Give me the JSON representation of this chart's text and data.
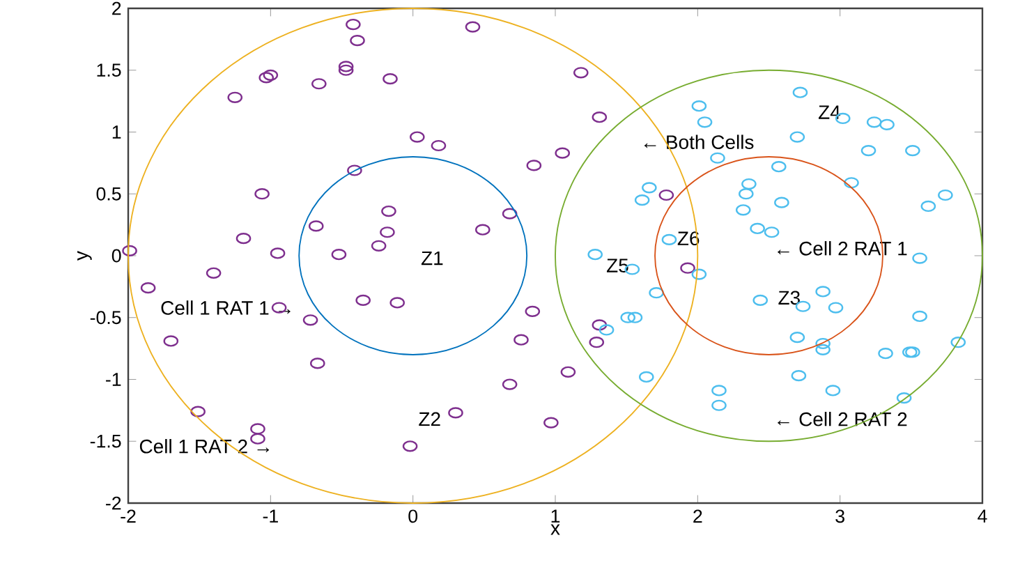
{
  "chart_data": {
    "type": "scatter",
    "xlabel": "x",
    "ylabel": "y",
    "xlim": [
      -2,
      4
    ],
    "ylim": [
      -2,
      2
    ],
    "xticks": [
      -2,
      -1,
      0,
      1,
      2,
      3,
      4
    ],
    "yticks": [
      -2,
      -1.5,
      -1,
      -0.5,
      0,
      0.5,
      1,
      1.5,
      2
    ],
    "marker": "circle",
    "series": [
      {
        "color": "#7e2f8e",
        "x": [
          -0.42,
          0.42,
          -0.39,
          -1.0,
          -1.03,
          -0.47,
          -0.47,
          -0.66,
          -0.16,
          -1.25,
          0.03,
          0.18,
          0.85,
          1.05,
          -0.41,
          -1.06,
          -0.17,
          -0.68,
          0.68,
          -1.19,
          -0.18,
          0.49,
          -0.24,
          -1.99,
          -0.95,
          -0.52,
          1.18,
          1.31,
          1.78,
          -1.4,
          -1.86,
          -0.35,
          -0.11,
          -0.94,
          -0.72,
          -1.7,
          -0.67,
          0.84,
          0.76,
          0.68,
          1.09,
          -1.51,
          -1.09,
          -1.09,
          0.3,
          0.97,
          -0.02,
          1.93,
          1.31,
          1.29
        ],
        "values": [
          1.87,
          1.85,
          1.74,
          1.46,
          1.44,
          1.53,
          1.5,
          1.39,
          1.43,
          1.28,
          0.96,
          0.89,
          0.73,
          0.83,
          0.69,
          0.5,
          0.36,
          0.24,
          0.34,
          0.14,
          0.19,
          0.21,
          0.08,
          0.04,
          0.02,
          0.01,
          1.48,
          1.12,
          0.49,
          -0.14,
          -0.26,
          -0.36,
          -0.38,
          -0.42,
          -0.52,
          -0.69,
          -0.87,
          -0.45,
          -0.68,
          -1.04,
          -0.94,
          -1.26,
          -1.4,
          -1.48,
          -1.27,
          -1.35,
          -1.54,
          -0.1,
          -0.56,
          -0.7
        ]
      },
      {
        "color": "#4dbeee",
        "x": [
          2.72,
          2.01,
          2.05,
          3.02,
          3.24,
          3.33,
          2.7,
          3.2,
          3.51,
          2.14,
          2.57,
          1.66,
          1.61,
          2.36,
          2.34,
          2.59,
          2.32,
          3.08,
          3.74,
          3.62,
          2.42,
          2.52,
          1.8,
          1.28,
          3.56,
          1.54,
          2.01,
          1.71,
          2.44,
          2.88,
          2.74,
          2.97,
          1.51,
          1.56,
          1.36,
          2.7,
          2.88,
          2.88,
          3.56,
          3.83,
          3.32,
          3.49,
          3.51,
          1.64,
          2.71,
          2.15,
          2.15,
          2.95,
          3.45
        ],
        "values": [
          1.32,
          1.21,
          1.08,
          1.11,
          1.08,
          1.06,
          0.96,
          0.85,
          0.85,
          0.79,
          0.72,
          0.55,
          0.45,
          0.58,
          0.5,
          0.43,
          0.37,
          0.59,
          0.49,
          0.4,
          0.22,
          0.19,
          0.13,
          0.01,
          -0.02,
          -0.11,
          -0.15,
          -0.3,
          -0.36,
          -0.29,
          -0.41,
          -0.42,
          -0.5,
          -0.5,
          -0.6,
          -0.66,
          -0.71,
          -0.76,
          -0.49,
          -0.7,
          -0.79,
          -0.78,
          -0.78,
          -0.98,
          -0.97,
          -1.09,
          -1.21,
          -1.09,
          -1.15
        ]
      }
    ],
    "annotations": [
      "Z1",
      "Z2",
      "Z3",
      "Z4",
      "Z5",
      "Z6",
      "Cell 1 RAT 1 →",
      "Cell 1 RAT 2 →",
      "← Both Cells",
      "← Cell 2 RAT 1",
      "← Cell 2 RAT 2"
    ]
  }
}
